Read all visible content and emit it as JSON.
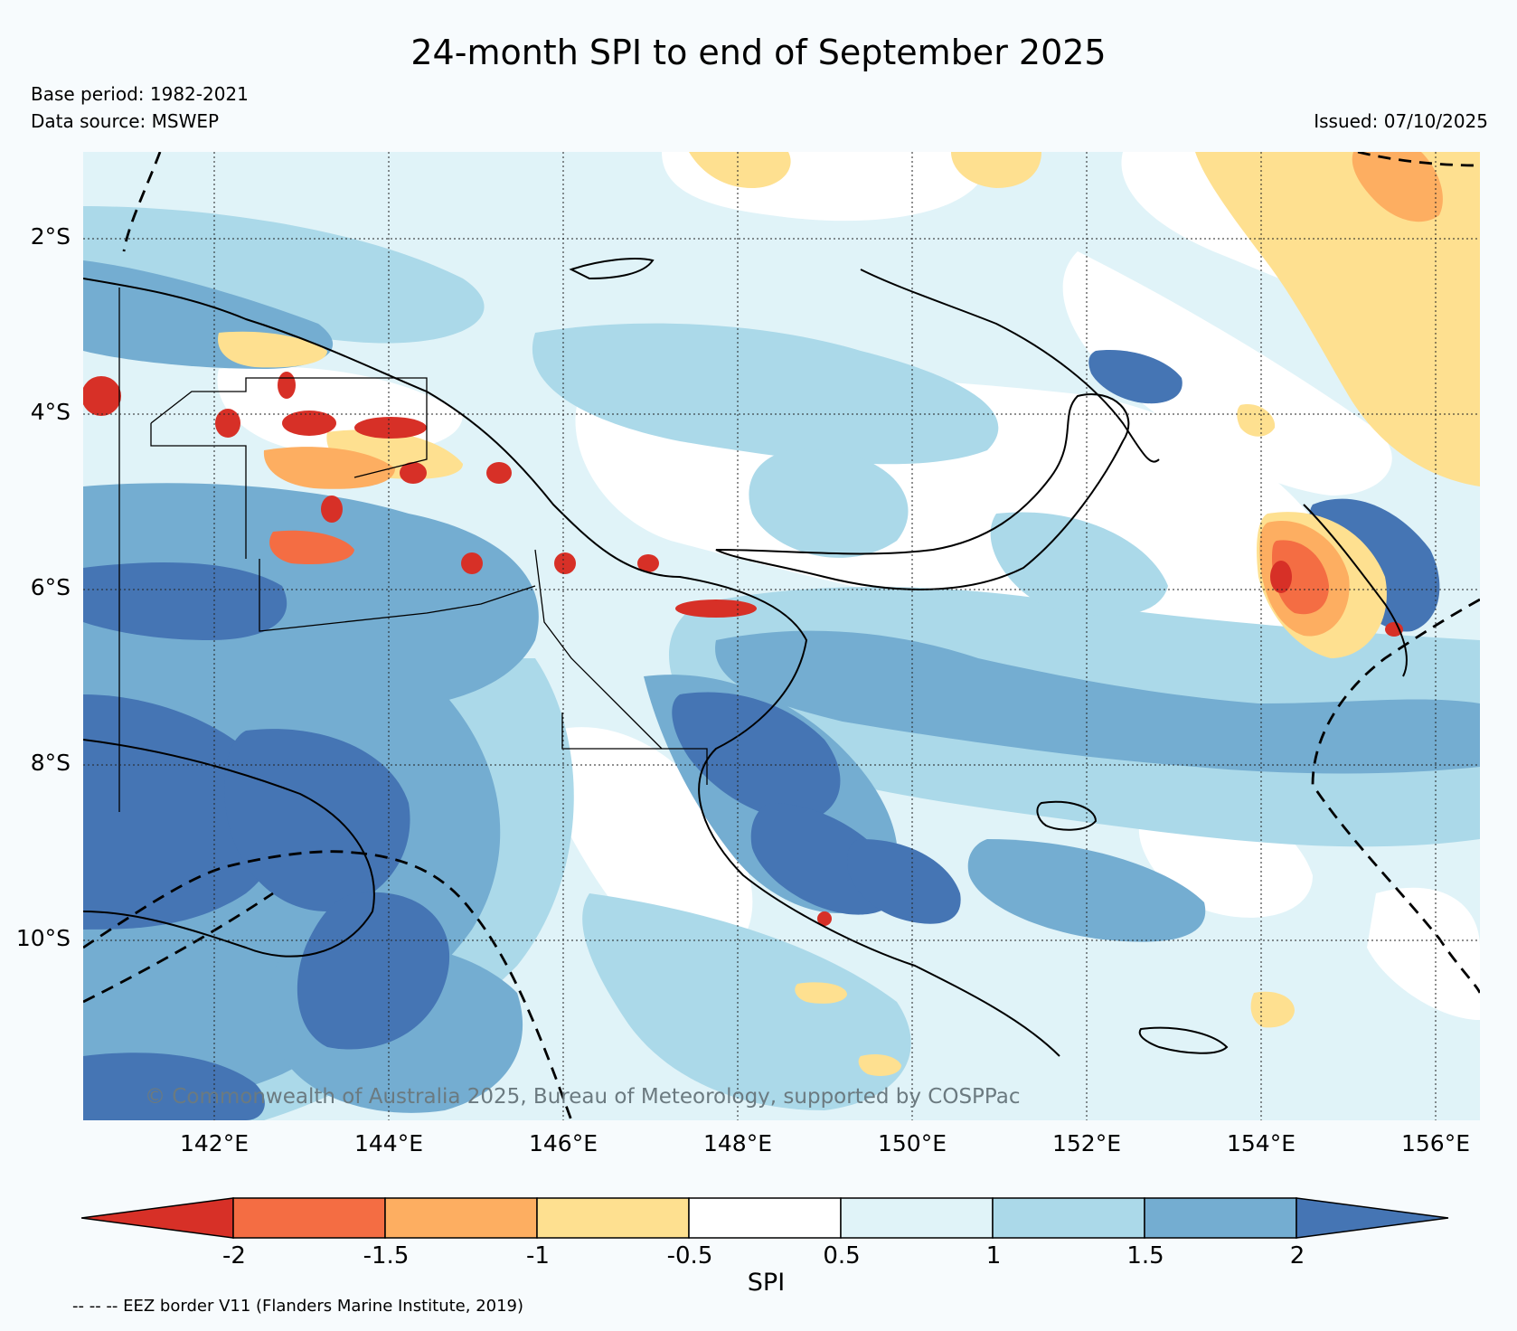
{
  "title": "24-month SPI to end of September 2025",
  "base_period": "Base period: 1982-2021",
  "data_source": "Data source: MSWEP",
  "issued": "Issued: 07/10/2025",
  "copyright": "© Commonwealth of Australia 2025, Bureau of Meteorology, supported by COSPPac",
  "map": {
    "extent": {
      "lon": [
        140.6,
        156.5
      ],
      "lat": [
        -12.0,
        -1.0
      ]
    },
    "lon_ticks": [
      "142°E",
      "144°E",
      "146°E",
      "148°E",
      "150°E",
      "152°E",
      "154°E",
      "156°E"
    ],
    "lat_ticks": [
      "2°S",
      "4°S",
      "6°S",
      "8°S",
      "10°S"
    ],
    "grid": true
  },
  "colorbar": {
    "title": "SPI",
    "tick_labels": [
      "-2",
      "-1.5",
      "-1",
      "-0.5",
      "0.5",
      "1",
      "1.5",
      "2"
    ],
    "colors": [
      "#d73027",
      "#f46d43",
      "#fdae61",
      "#fee090",
      "#ffffff",
      "#e0f3f8",
      "#abd9e9",
      "#74add1",
      "#4575b4"
    ],
    "extend": "both"
  },
  "eez_note": "-- -- -- EEZ border V11 (Flanders Marine Institute, 2019)"
}
